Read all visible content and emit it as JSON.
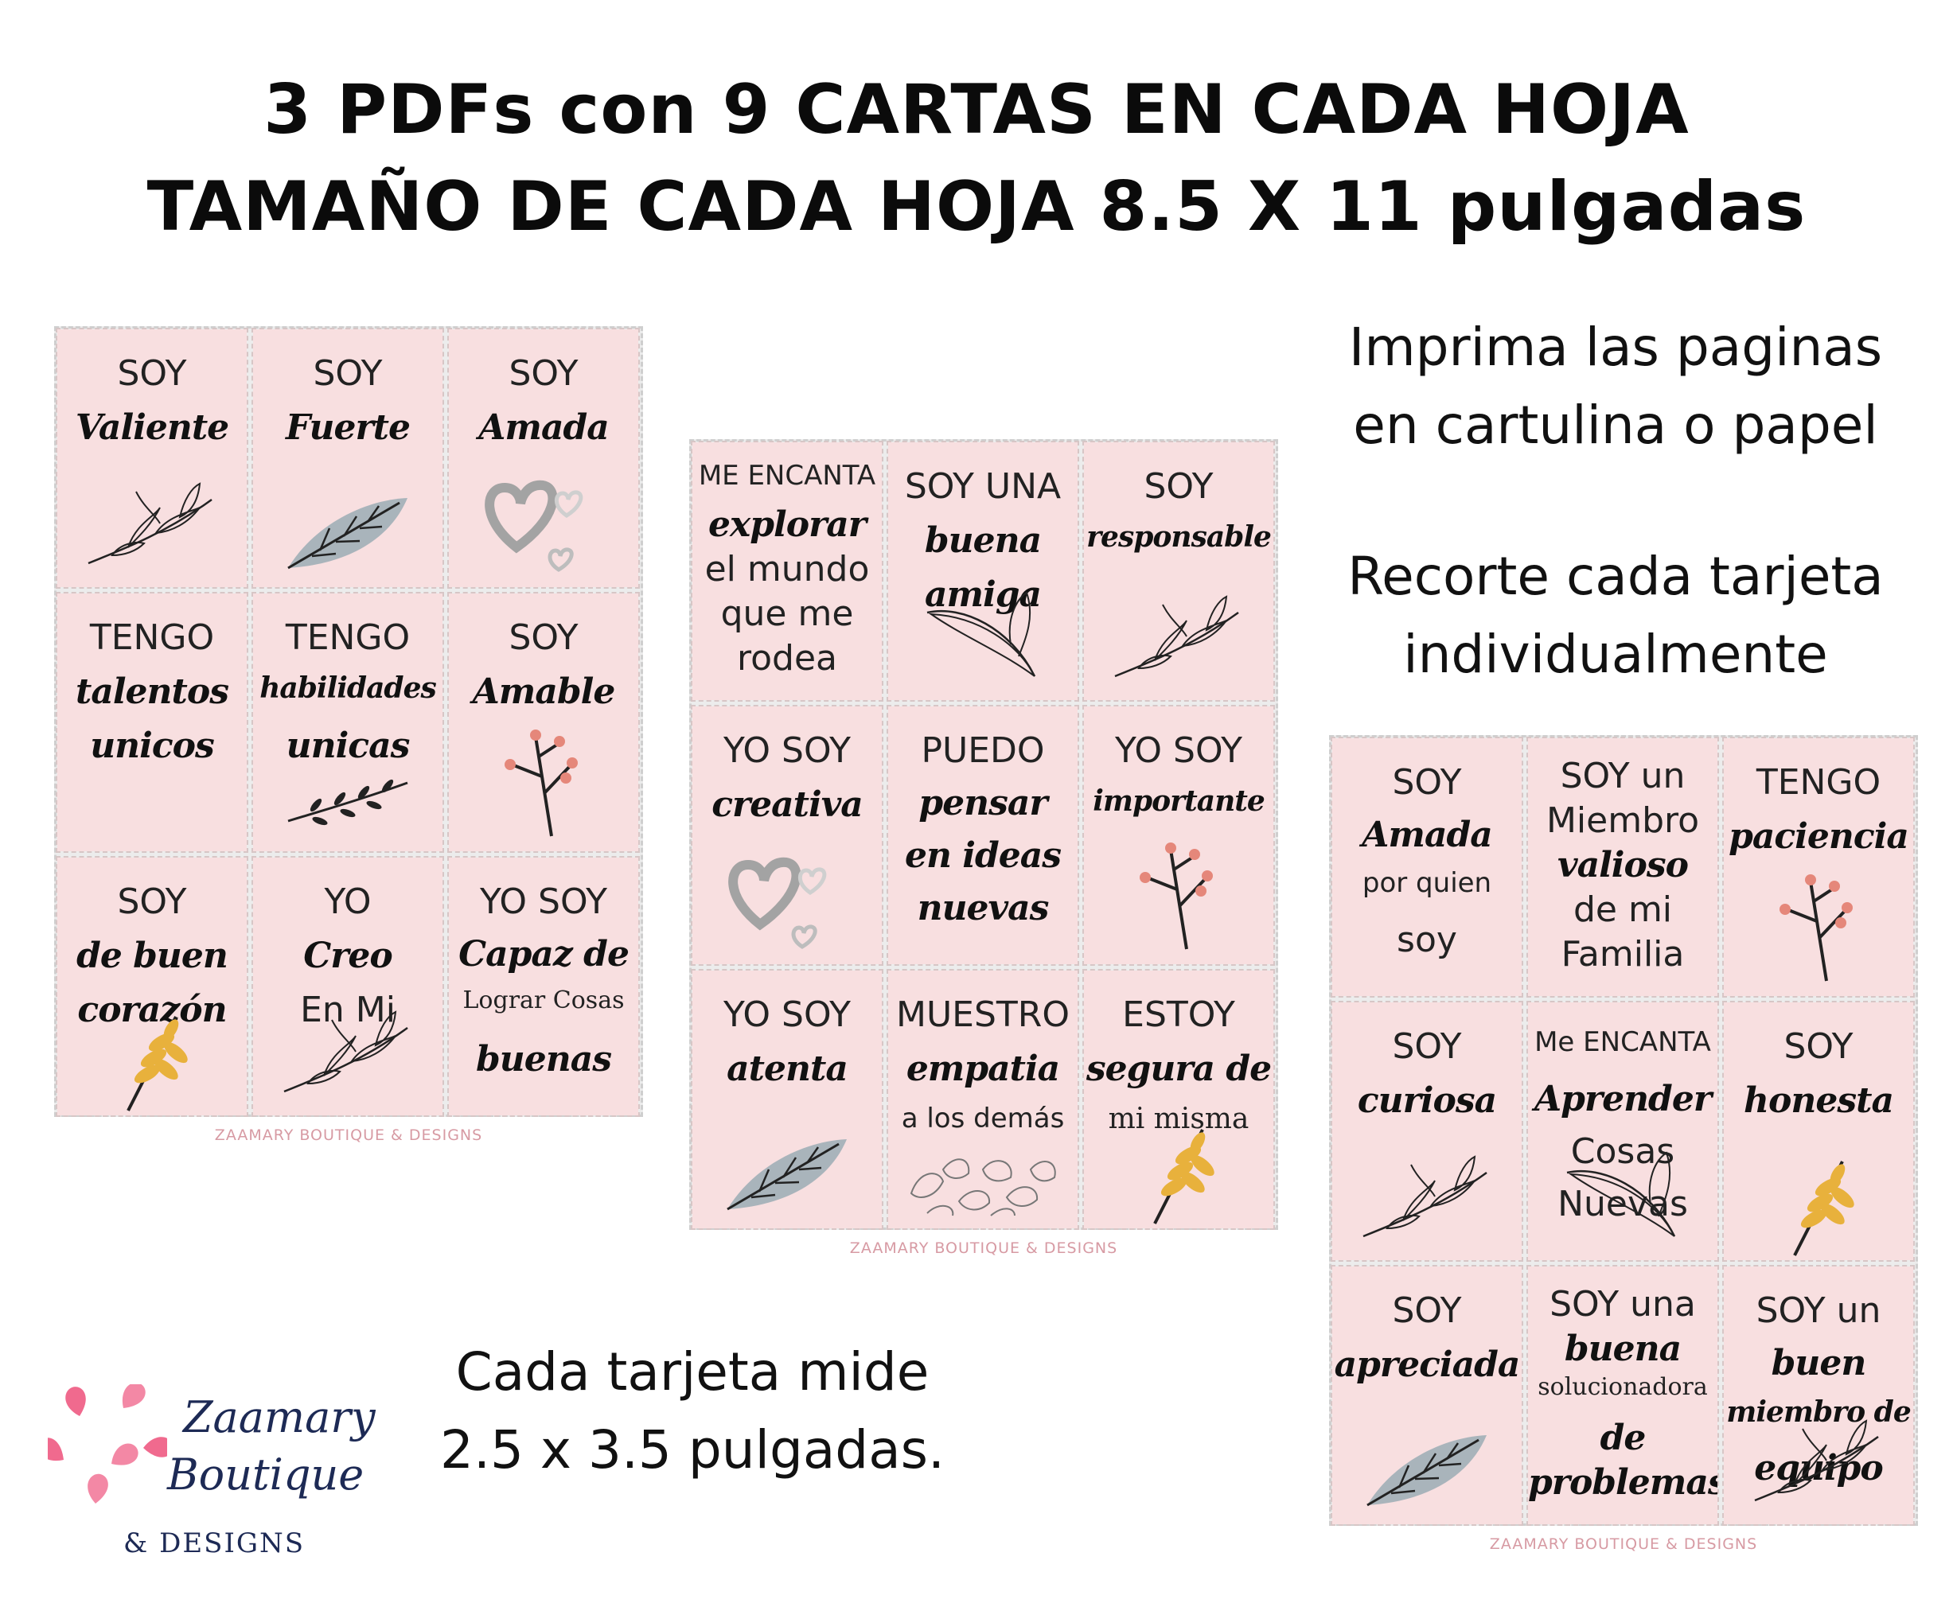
{
  "header": {
    "line1": "3 PDFs con 9 CARTAS EN CADA HOJA",
    "line2": "TAMAÑO DE CADA HOJA 8.5 X 11 pulgadas"
  },
  "info": {
    "print_line1": "Imprima las paginas",
    "print_line2": "en cartulina o papel",
    "cut_line1": "Recorte cada tarjeta",
    "cut_line2": "individualmente",
    "size_line1": "Cada tarjeta mide",
    "size_line2": "2.5 x 3.5 pulgadas."
  },
  "brand": {
    "line1": "Zaamary",
    "line2": "Boutique",
    "line3": "& DESIGNS",
    "footer": "ZAAMARY BOUTIQUE & DESIGNS",
    "petal_color": "#f06a8e"
  },
  "colors": {
    "card": "#f8dfe0",
    "leaf_gray": "#a9b4bb",
    "wheat": "#e8b13c",
    "berry": "#e5877a"
  },
  "sheets": [
    {
      "cards": [
        {
          "lines": [
            {
              "t": "SOY",
              "s": "plain"
            },
            {
              "t": "Valiente",
              "s": "script"
            }
          ],
          "icon": "branch-icon"
        },
        {
          "lines": [
            {
              "t": "SOY",
              "s": "plain"
            },
            {
              "t": "Fuerte",
              "s": "script"
            }
          ],
          "icon": "gray-leaf-icon"
        },
        {
          "lines": [
            {
              "t": "SOY",
              "s": "plain"
            },
            {
              "t": "Amada",
              "s": "script"
            }
          ],
          "icon": "hearts-icon"
        },
        {
          "lines": [
            {
              "t": "TENGO",
              "s": "plain"
            },
            {
              "t": "talentos",
              "s": "script"
            },
            {
              "t": "unicos",
              "s": "script"
            }
          ],
          "icon": ""
        },
        {
          "lines": [
            {
              "t": "TENGO",
              "s": "plain"
            },
            {
              "t": "habilidades",
              "s": "script"
            },
            {
              "t": "unicas",
              "s": "script"
            }
          ],
          "icon": "sprig-icon"
        },
        {
          "lines": [
            {
              "t": "SOY",
              "s": "plain"
            },
            {
              "t": "Amable",
              "s": "script"
            }
          ],
          "icon": "berry-twig-icon"
        },
        {
          "lines": [
            {
              "t": "SOY",
              "s": "plain"
            },
            {
              "t": "de buen",
              "s": "script"
            },
            {
              "t": "corazón",
              "s": "script"
            }
          ],
          "icon": "wheat-icon"
        },
        {
          "lines": [
            {
              "t": "YO",
              "s": "plain"
            },
            {
              "t": "Creo",
              "s": "script"
            },
            {
              "t": "En Mi",
              "s": "plain"
            }
          ],
          "icon": "branch-icon"
        },
        {
          "lines": [
            {
              "t": "YO SOY",
              "s": "plain"
            },
            {
              "t": "Capaz de",
              "s": "script"
            },
            {
              "t": "Lograr Cosas",
              "s": "serif"
            },
            {
              "t": "buenas",
              "s": "script"
            }
          ],
          "icon": ""
        }
      ]
    },
    {
      "cards": [
        {
          "lines": [
            {
              "t": "ME ENCANTA",
              "s": "plain"
            },
            {
              "t": "explorar",
              "s": "script"
            },
            {
              "t": "el mundo",
              "s": "plain"
            },
            {
              "t": "que me",
              "s": "plain"
            },
            {
              "t": "rodea",
              "s": "plain"
            }
          ],
          "icon": ""
        },
        {
          "lines": [
            {
              "t": "SOY UNA",
              "s": "plain"
            },
            {
              "t": "buena",
              "s": "script"
            },
            {
              "t": "amiga",
              "s": "script"
            }
          ],
          "icon": "outline-leaf-icon"
        },
        {
          "lines": [
            {
              "t": "SOY",
              "s": "plain"
            },
            {
              "t": "responsable",
              "s": "script"
            }
          ],
          "icon": "branch-icon"
        },
        {
          "lines": [
            {
              "t": "YO SOY",
              "s": "plain"
            },
            {
              "t": "creativa",
              "s": "script"
            }
          ],
          "icon": "hearts-icon"
        },
        {
          "lines": [
            {
              "t": "PUEDO",
              "s": "plain"
            },
            {
              "t": "pensar",
              "s": "script"
            },
            {
              "t": "en ideas",
              "s": "script"
            },
            {
              "t": "nuevas",
              "s": "script"
            }
          ],
          "icon": ""
        },
        {
          "lines": [
            {
              "t": "YO SOY",
              "s": "plain"
            },
            {
              "t": "importante",
              "s": "script"
            }
          ],
          "icon": "berry-twig-icon"
        },
        {
          "lines": [
            {
              "t": "YO SOY",
              "s": "plain"
            },
            {
              "t": "atenta",
              "s": "script"
            }
          ],
          "icon": "gray-leaf-icon"
        },
        {
          "lines": [
            {
              "t": "MUESTRO",
              "s": "plain"
            },
            {
              "t": "empatia",
              "s": "script"
            },
            {
              "t": "a los demás",
              "s": "plain"
            }
          ],
          "icon": "leaves-pile-icon"
        },
        {
          "lines": [
            {
              "t": "ESTOY",
              "s": "plain"
            },
            {
              "t": "segura de",
              "s": "script"
            },
            {
              "t": "mi misma",
              "s": "serif"
            }
          ],
          "icon": "wheat-icon"
        }
      ]
    },
    {
      "cards": [
        {
          "lines": [
            {
              "t": "SOY",
              "s": "plain"
            },
            {
              "t": "Amada",
              "s": "script"
            },
            {
              "t": "por quien",
              "s": "plain"
            },
            {
              "t": "soy",
              "s": "plain"
            }
          ],
          "icon": ""
        },
        {
          "lines": [
            {
              "t": "SOY un",
              "s": "plain"
            },
            {
              "t": "Miembro",
              "s": "plain"
            },
            {
              "t": "valioso",
              "s": "script"
            },
            {
              "t": "de mi",
              "s": "plain"
            },
            {
              "t": "Familia",
              "s": "plain"
            }
          ],
          "icon": ""
        },
        {
          "lines": [
            {
              "t": "TENGO",
              "s": "plain"
            },
            {
              "t": "paciencia",
              "s": "script"
            }
          ],
          "icon": "berry-twig-icon"
        },
        {
          "lines": [
            {
              "t": "SOY",
              "s": "plain"
            },
            {
              "t": "curiosa",
              "s": "script"
            }
          ],
          "icon": "branch-icon"
        },
        {
          "lines": [
            {
              "t": "Me ENCANTA",
              "s": "plain"
            },
            {
              "t": "Aprender",
              "s": "script"
            },
            {
              "t": "Cosas",
              "s": "plain"
            },
            {
              "t": "Nuevas",
              "s": "plain"
            }
          ],
          "icon": "outline-leaf-icon"
        },
        {
          "lines": [
            {
              "t": "SOY",
              "s": "plain"
            },
            {
              "t": "honesta",
              "s": "script"
            }
          ],
          "icon": "wheat-icon"
        },
        {
          "lines": [
            {
              "t": "SOY",
              "s": "plain"
            },
            {
              "t": "apreciada",
              "s": "script"
            }
          ],
          "icon": "gray-leaf-icon"
        },
        {
          "lines": [
            {
              "t": "SOY una",
              "s": "plain"
            },
            {
              "t": "buena",
              "s": "script"
            },
            {
              "t": "solucionadora",
              "s": "serif"
            },
            {
              "t": "de",
              "s": "script"
            },
            {
              "t": "problemas",
              "s": "script"
            }
          ],
          "icon": ""
        },
        {
          "lines": [
            {
              "t": "SOY un",
              "s": "plain"
            },
            {
              "t": "buen",
              "s": "script"
            },
            {
              "t": "miembro de",
              "s": "script"
            },
            {
              "t": "equipo",
              "s": "script"
            }
          ],
          "icon": "branch-icon"
        }
      ]
    }
  ]
}
